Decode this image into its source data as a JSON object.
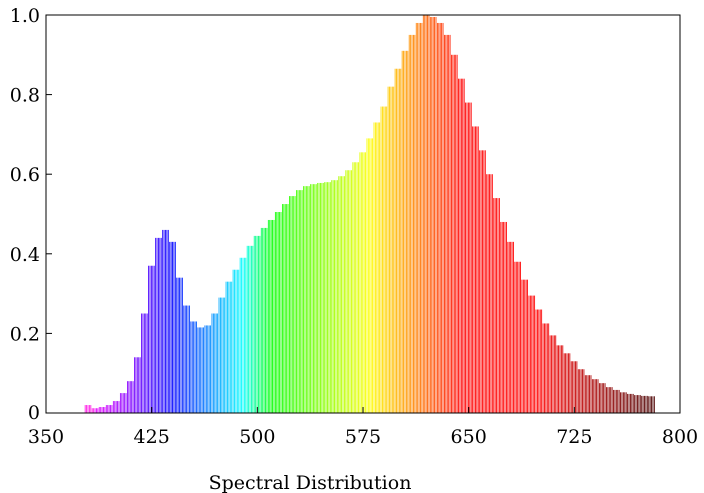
{
  "chart_data": {
    "type": "bar",
    "title": "",
    "xlabel": "Spectral Distribution",
    "ylabel": "",
    "xlim": [
      350,
      800
    ],
    "ylim": [
      0,
      1.0
    ],
    "x_ticks": [
      350,
      425,
      500,
      575,
      650,
      725,
      800
    ],
    "x_tick_labels": [
      "350",
      "425",
      "500",
      "575",
      "650",
      "725",
      "800"
    ],
    "y_ticks": [
      0,
      0.2,
      0.4,
      0.6,
      0.8,
      1.0
    ],
    "y_tick_labels": [
      "0",
      "0.2",
      "0.4",
      "0.6",
      "0.8",
      "1.0"
    ],
    "grid": false,
    "bar_fill": "wavelength-colored",
    "x": [
      380,
      385,
      390,
      395,
      400,
      405,
      410,
      415,
      420,
      425,
      430,
      435,
      440,
      445,
      450,
      455,
      460,
      465,
      470,
      475,
      480,
      485,
      490,
      495,
      500,
      505,
      510,
      515,
      520,
      525,
      530,
      535,
      540,
      545,
      550,
      555,
      560,
      565,
      570,
      575,
      580,
      585,
      590,
      595,
      600,
      605,
      610,
      615,
      620,
      625,
      630,
      635,
      640,
      645,
      650,
      655,
      660,
      665,
      670,
      675,
      680,
      685,
      690,
      695,
      700,
      705,
      710,
      715,
      720,
      725,
      730,
      735,
      740,
      745,
      750,
      755,
      760,
      765,
      770,
      775,
      780
    ],
    "values": [
      0.02,
      0.012,
      0.015,
      0.02,
      0.03,
      0.05,
      0.08,
      0.14,
      0.25,
      0.37,
      0.44,
      0.46,
      0.43,
      0.34,
      0.27,
      0.23,
      0.215,
      0.22,
      0.25,
      0.29,
      0.33,
      0.36,
      0.39,
      0.42,
      0.445,
      0.465,
      0.485,
      0.505,
      0.525,
      0.545,
      0.56,
      0.57,
      0.575,
      0.578,
      0.58,
      0.585,
      0.595,
      0.61,
      0.63,
      0.655,
      0.69,
      0.73,
      0.77,
      0.82,
      0.865,
      0.91,
      0.95,
      0.98,
      1.0,
      0.995,
      0.98,
      0.95,
      0.9,
      0.84,
      0.78,
      0.72,
      0.66,
      0.6,
      0.54,
      0.48,
      0.43,
      0.38,
      0.335,
      0.295,
      0.26,
      0.225,
      0.195,
      0.17,
      0.15,
      0.13,
      0.11,
      0.095,
      0.085,
      0.075,
      0.065,
      0.058,
      0.052,
      0.048,
      0.045,
      0.043,
      0.042
    ]
  }
}
